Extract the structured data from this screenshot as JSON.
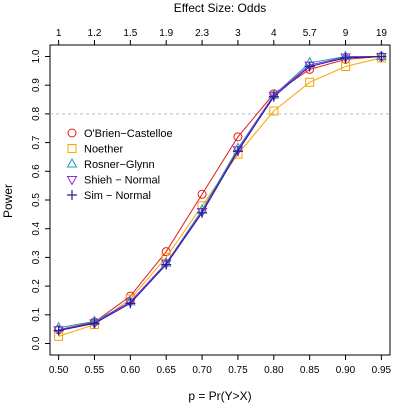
{
  "chart_data": {
    "type": "line",
    "title": "Effect Size: Odds",
    "xlabel": "p = Pr(Y>X)",
    "ylabel": "Power",
    "x": [
      0.5,
      0.55,
      0.6,
      0.65,
      0.7,
      0.75,
      0.8,
      0.85,
      0.9,
      0.95
    ],
    "x_tick_labels": [
      "0.50",
      "0.55",
      "0.60",
      "0.65",
      "0.70",
      "0.75",
      "0.80",
      "0.85",
      "0.90",
      "0.95"
    ],
    "top_axis_tick_labels": [
      "1",
      "1.2",
      "1.5",
      "1.9",
      "2.3",
      "3",
      "4",
      "5.7",
      "9",
      "19"
    ],
    "y_ticks": [
      0.0,
      0.1,
      0.2,
      0.3,
      0.4,
      0.5,
      0.6,
      0.7,
      0.8,
      0.9,
      1.0
    ],
    "y_tick_labels": [
      "0.0",
      "0.1",
      "0.2",
      "0.3",
      "0.4",
      "0.5",
      "0.6",
      "0.7",
      "0.8",
      "0.9",
      "1.0"
    ],
    "xlim": [
      0.488,
      0.962
    ],
    "ylim": [
      -0.04,
      1.04
    ],
    "reference_line": {
      "y": 0.8,
      "style": "dashed",
      "color": "#bbbbbb"
    },
    "grid": false,
    "legend_position": "left, middle",
    "series": [
      {
        "name": "O'Brien−Castelloe",
        "color": "#e41a1c",
        "marker": "circle",
        "values": [
          0.048,
          0.075,
          0.165,
          0.32,
          0.52,
          0.72,
          0.87,
          0.955,
          0.99,
          1.0
        ]
      },
      {
        "name": "Noether",
        "color": "#f7a600",
        "marker": "square",
        "values": [
          0.025,
          0.066,
          0.155,
          0.3,
          0.48,
          0.66,
          0.81,
          0.91,
          0.965,
          0.995
        ]
      },
      {
        "name": "Rosner−Glynn",
        "color": "#17a2b8",
        "marker": "triangle-up",
        "values": [
          0.055,
          0.077,
          0.145,
          0.28,
          0.465,
          0.68,
          0.865,
          0.978,
          1.0,
          1.0
        ]
      },
      {
        "name": "Shieh − Normal",
        "color": "#8b2be2",
        "marker": "triangle-down",
        "values": [
          0.048,
          0.072,
          0.145,
          0.28,
          0.46,
          0.675,
          0.865,
          0.97,
          0.998,
          1.0
        ]
      },
      {
        "name": "Sim − Normal",
        "color": "#1f1f8f",
        "marker": "plus",
        "values": [
          0.045,
          0.07,
          0.14,
          0.275,
          0.455,
          0.67,
          0.86,
          0.965,
          0.995,
          1.0
        ]
      }
    ]
  }
}
